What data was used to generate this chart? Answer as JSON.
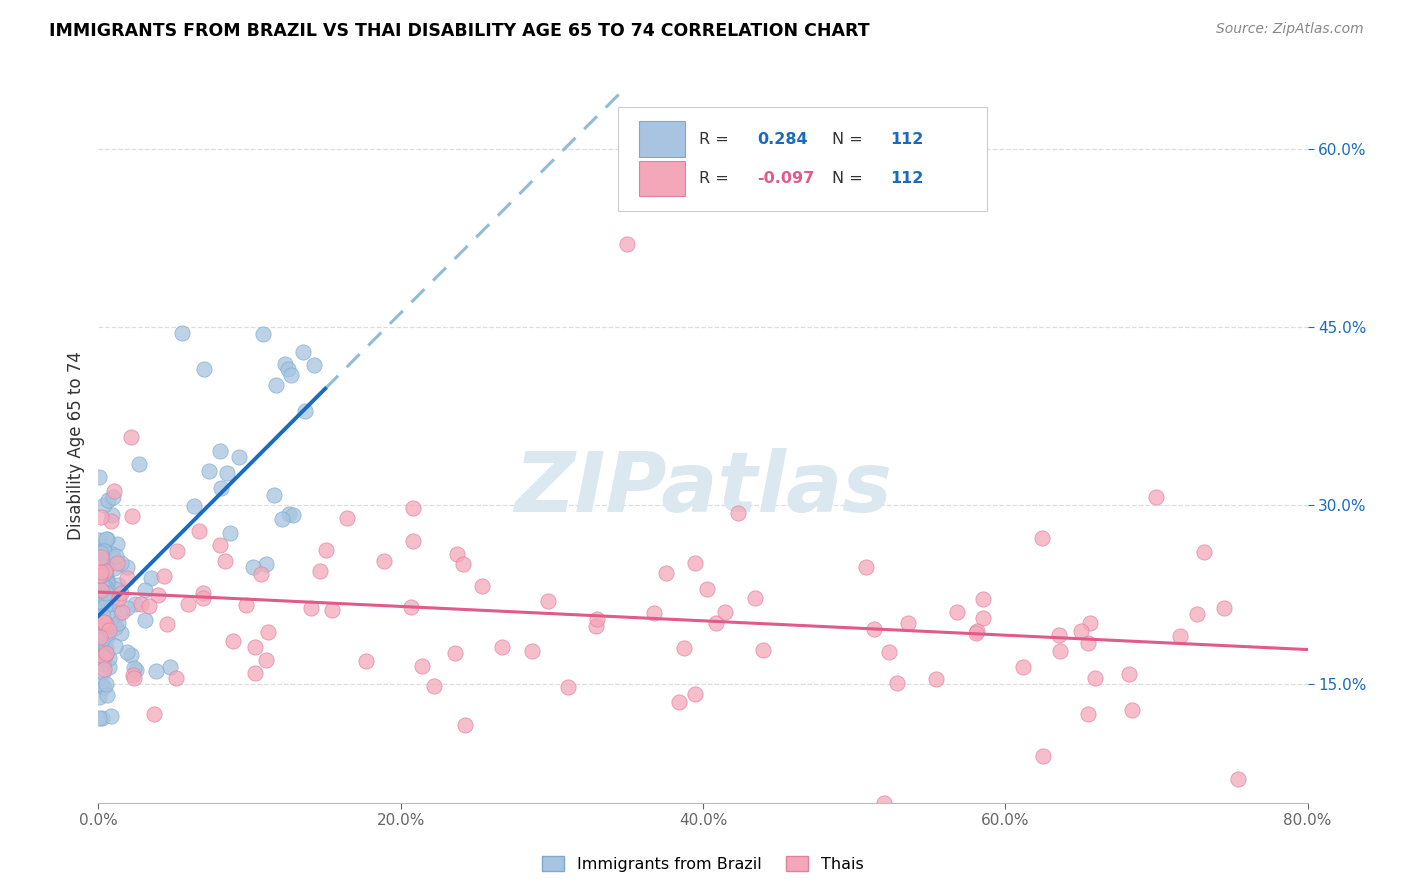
{
  "title": "IMMIGRANTS FROM BRAZIL VS THAI DISABILITY AGE 65 TO 74 CORRELATION CHART",
  "source": "Source: ZipAtlas.com",
  "ylabel_label": "Disability Age 65 to 74",
  "legend_label1": "Immigrants from Brazil",
  "legend_label2": "Thais",
  "r1": 0.284,
  "n1": 112,
  "r2": -0.097,
  "n2": 112,
  "brazil_color": "#a8c4e0",
  "brazil_edge_color": "#7aaacf",
  "thai_color": "#f4a7b9",
  "thai_edge_color": "#e080a0",
  "brazil_line_color": "#1a6bbf",
  "brazil_dash_color": "#90bcd8",
  "thai_line_color": "#e05a8a",
  "watermark_color": "#dce8f0",
  "grid_color": "#dddddd",
  "xticks": [
    0,
    20,
    40,
    60,
    80
  ],
  "xtick_labels": [
    "0.0%",
    "20.0%",
    "40.0%",
    "60.0%",
    "80.0%"
  ],
  "yticks": [
    15,
    30,
    45,
    60
  ],
  "ytick_labels": [
    "15.0%",
    "30.0%",
    "45.0%",
    "60.0%"
  ],
  "xmin": 0,
  "xmax": 80,
  "ymin": 5,
  "ymax": 65
}
